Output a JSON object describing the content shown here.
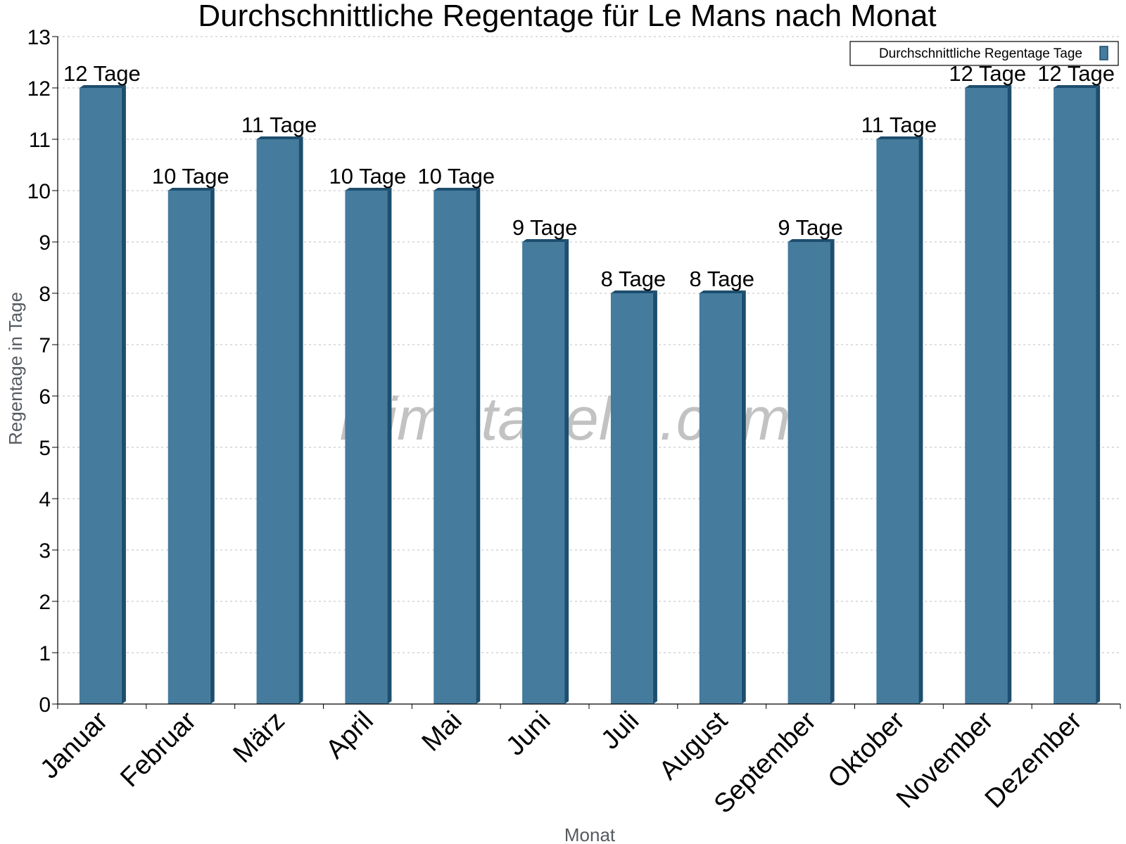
{
  "chart_data": {
    "type": "bar",
    "title": "Durchschnittliche Regentage für Le Mans nach Monat",
    "xlabel": "Monat",
    "ylabel": "Regentage in Tage",
    "ylim": [
      0,
      13
    ],
    "yticks": [
      0,
      1,
      2,
      3,
      4,
      5,
      6,
      7,
      8,
      9,
      10,
      11,
      12,
      13
    ],
    "grid": true,
    "legend_position": "top-right",
    "categories": [
      "Januar",
      "Februar",
      "März",
      "April",
      "Mai",
      "Juni",
      "Juli",
      "August",
      "September",
      "Oktober",
      "November",
      "Dezember"
    ],
    "series": [
      {
        "name": "Durchschnittliche Regentage Tage",
        "values": [
          12,
          10,
          11,
          10,
          10,
          9,
          8,
          8,
          9,
          11,
          12,
          12
        ],
        "labels": [
          "12 Tage",
          "10 Tage",
          "11 Tage",
          "10 Tage",
          "10 Tage",
          "9 Tage",
          "8 Tage",
          "8 Tage",
          "9 Tage",
          "11 Tage",
          "12 Tage",
          "12 Tage"
        ],
        "color": "#457b9d",
        "edge_color": "#1d4e6e"
      }
    ]
  },
  "watermark": "klimatabelle.com"
}
